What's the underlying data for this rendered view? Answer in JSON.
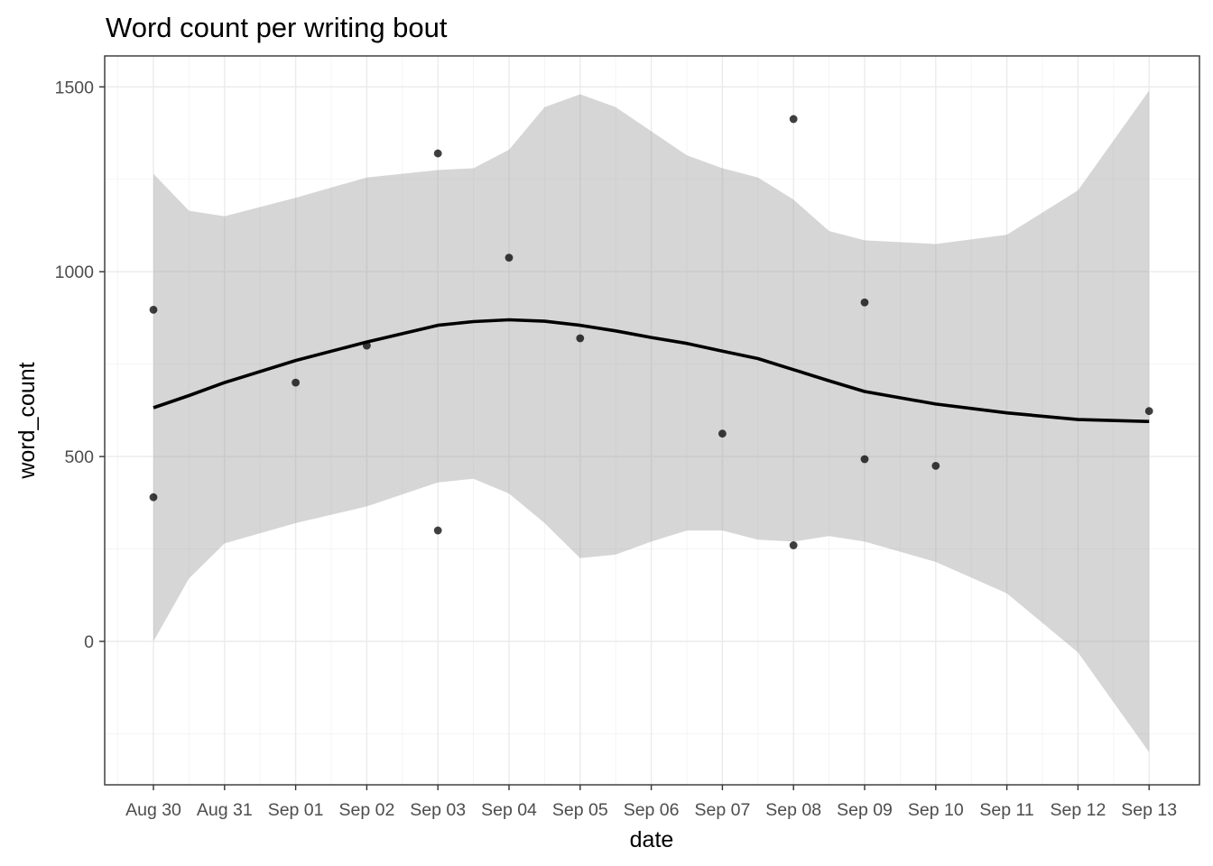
{
  "chart_data": {
    "type": "scatter",
    "title": "Word count per writing bout",
    "xlabel": "date",
    "ylabel": "word_count",
    "x_ticks": [
      "Aug 30",
      "Aug 31",
      "Sep 01",
      "Sep 02",
      "Sep 03",
      "Sep 04",
      "Sep 05",
      "Sep 06",
      "Sep 07",
      "Sep 08",
      "Sep 09",
      "Sep 10",
      "Sep 11",
      "Sep 12",
      "Sep 13"
    ],
    "y_ticks": [
      0,
      500,
      1000,
      1500
    ],
    "xlim": [
      "Aug 29.5",
      "Sep 13.7"
    ],
    "ylim": [
      -400,
      1590
    ],
    "grid": true,
    "theme": "bw",
    "points": [
      {
        "x": "Aug 30",
        "y": 897
      },
      {
        "x": "Aug 30",
        "y": 390
      },
      {
        "x": "Sep 01",
        "y": 700
      },
      {
        "x": "Sep 02",
        "y": 800
      },
      {
        "x": "Sep 03",
        "y": 1320
      },
      {
        "x": "Sep 03",
        "y": 300
      },
      {
        "x": "Sep 04",
        "y": 1038
      },
      {
        "x": "Sep 05",
        "y": 820
      },
      {
        "x": "Sep 07",
        "y": 562
      },
      {
        "x": "Sep 08",
        "y": 1413
      },
      {
        "x": "Sep 08",
        "y": 260
      },
      {
        "x": "Sep 09",
        "y": 917
      },
      {
        "x": "Sep 09",
        "y": 493
      },
      {
        "x": "Sep 10",
        "y": 475
      },
      {
        "x": "Sep 13",
        "y": 623
      }
    ],
    "smooth": {
      "method": "loess",
      "color": "#000000",
      "ribbon_color": "#999999",
      "x": [
        "Aug 30",
        "Aug 30.5",
        "Aug 31",
        "Sep 01",
        "Sep 02",
        "Sep 03",
        "Sep 03.5",
        "Sep 04",
        "Sep 04.5",
        "Sep 05",
        "Sep 05.5",
        "Sep 06",
        "Sep 06.5",
        "Sep 07",
        "Sep 07.5",
        "Sep 08",
        "Sep 08.5",
        "Sep 09",
        "Sep 10",
        "Sep 11",
        "Sep 12",
        "Sep 13"
      ],
      "y": [
        632,
        665,
        700,
        760,
        810,
        855,
        865,
        870,
        866,
        855,
        840,
        822,
        806,
        785,
        765,
        735,
        705,
        676,
        642,
        618,
        600,
        595
      ],
      "ymin": [
        0,
        170,
        265,
        320,
        365,
        430,
        440,
        400,
        320,
        225,
        235,
        270,
        300,
        300,
        275,
        270,
        285,
        270,
        215,
        130,
        -30,
        -300
      ],
      "ymax": [
        1265,
        1165,
        1150,
        1200,
        1255,
        1275,
        1280,
        1330,
        1445,
        1480,
        1445,
        1380,
        1315,
        1280,
        1255,
        1195,
        1110,
        1085,
        1075,
        1100,
        1220,
        1490
      ]
    },
    "colors": {
      "point": "#000000",
      "line": "#000000",
      "ribbon": "#999999"
    }
  }
}
